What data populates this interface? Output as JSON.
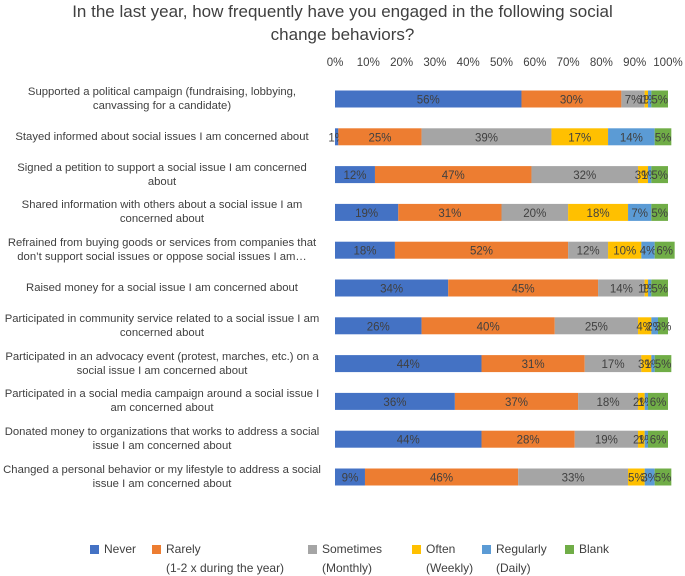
{
  "chart_data": {
    "type": "bar",
    "orientation": "horizontal",
    "stacked": true,
    "title": "In the last year, how frequently have you engaged in the following social change behaviors?",
    "title_lines": [
      "In the last year, how frequently have you engaged in the following social",
      "change behaviors?"
    ],
    "xlim": [
      0,
      100
    ],
    "x_ticks": [
      "0%",
      "10%",
      "20%",
      "30%",
      "40%",
      "50%",
      "60%",
      "70%",
      "80%",
      "90%",
      "100%"
    ],
    "grid": false,
    "legend_position": "bottom",
    "categories": [
      [
        "Supported a political campaign (fundraising, lobbying,",
        "canvassing for a candidate)"
      ],
      [
        "Stayed informed about social issues I am concerned about"
      ],
      [
        "Signed a petition to support a social issue I am concerned",
        "about"
      ],
      [
        "Shared information with others about a social issue I am",
        "concerned about"
      ],
      [
        "Refrained from buying goods or services from companies that",
        "don’t support social issues or oppose social issues I am…"
      ],
      [
        "Raised money for a social issue I am concerned about"
      ],
      [
        "Participated in community service related to a social issue I am",
        "concerned about"
      ],
      [
        "Participated in an advocacy event (protest, marches, etc.) on a",
        "social issue I am concerned about"
      ],
      [
        "Participated in a social media campaign around a social issue I",
        "am concerned about"
      ],
      [
        "Donated money to organizations that works to address a social",
        "issue I am concerned about"
      ],
      [
        "Changed a personal behavior or my lifestyle to address a social",
        "issue I am concerned about"
      ]
    ],
    "series": [
      {
        "name": "Never",
        "sub": "",
        "color": "#4472C4",
        "values": [
          56,
          1,
          12,
          19,
          18,
          34,
          26,
          44,
          36,
          44,
          9
        ]
      },
      {
        "name": "Rarely",
        "sub": "(1-2 x during the year)",
        "color": "#ED7D31",
        "values": [
          30,
          25,
          47,
          31,
          52,
          45,
          40,
          31,
          37,
          28,
          46
        ]
      },
      {
        "name": "Sometimes",
        "sub": "(Monthly)",
        "color": "#A5A5A5",
        "values": [
          7,
          39,
          32,
          20,
          12,
          14,
          25,
          17,
          18,
          19,
          33
        ]
      },
      {
        "name": "Often",
        "sub": "(Weekly)",
        "color": "#FFC000",
        "values": [
          1,
          17,
          3,
          18,
          10,
          1,
          4,
          3,
          2,
          2,
          5
        ]
      },
      {
        "name": "Regularly",
        "sub": "(Daily)",
        "color": "#5B9BD5",
        "values": [
          1,
          14,
          1,
          7,
          4,
          1,
          2,
          1,
          1,
          1,
          3
        ]
      },
      {
        "name": "Blank",
        "sub": "",
        "color": "#70AD47",
        "values": [
          5,
          5,
          5,
          5,
          6,
          5,
          3,
          5,
          6,
          6,
          5
        ]
      }
    ]
  }
}
